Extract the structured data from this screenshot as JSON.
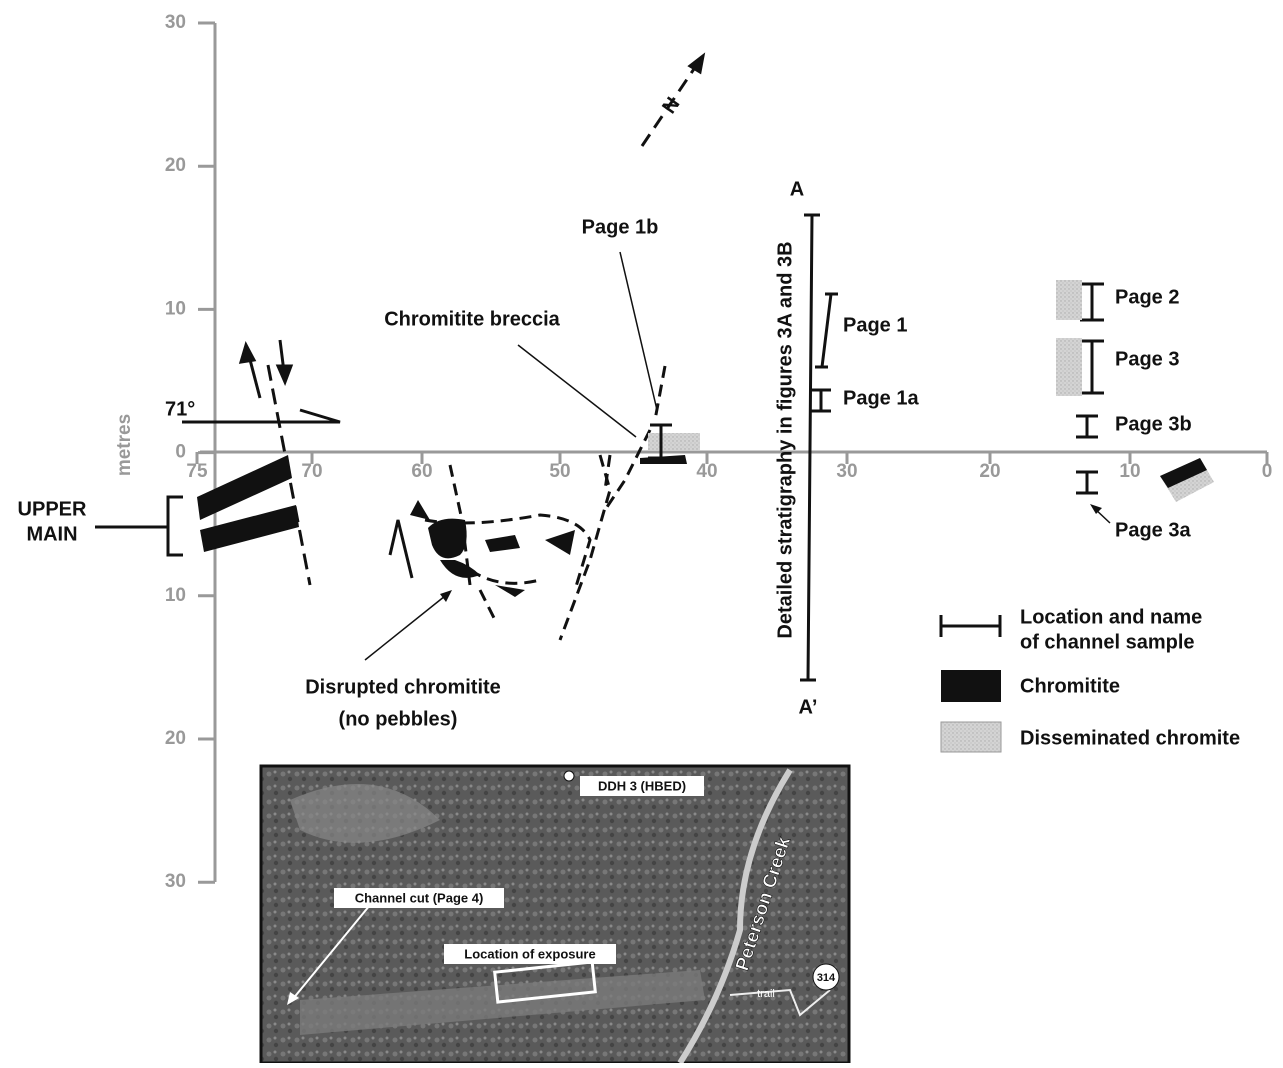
{
  "north": "N",
  "axes": {
    "y_label": "metres",
    "y_ticks": [
      "30",
      "20",
      "10",
      "0",
      "10",
      "20",
      "30"
    ],
    "x_ticks": [
      "75",
      "70",
      "60",
      "50",
      "40",
      "30",
      "20",
      "10",
      "0"
    ]
  },
  "labels": {
    "page_1b": "Page 1b",
    "breccia": "Chromitite breccia",
    "page_1": "Page 1",
    "page_1a": "Page 1a",
    "page_2": "Page 2",
    "page_3": "Page 3",
    "page_3b": "Page 3b",
    "page_3a": "Page 3a",
    "dip": "71°",
    "upper_main": [
      "UPPER",
      "MAIN"
    ],
    "disrupted": [
      "Disrupted chromitite",
      "(no pebbles)"
    ],
    "section_a": "A",
    "section_a_prime": "A’",
    "stratigraphy": "Detailed stratigraphy in figures 3A and 3B"
  },
  "legend": {
    "channel": [
      "Location and name",
      "of channel sample"
    ],
    "chromitite": "Chromitite",
    "disseminated": "Disseminated chromite"
  },
  "inset": {
    "ddh": "DDH 3 (HBED)",
    "creek": "Peterson Creek",
    "channel_cut": "Channel cut (Page 4)",
    "exposure": "Location of exposure",
    "trail": "trail",
    "road": "314"
  }
}
